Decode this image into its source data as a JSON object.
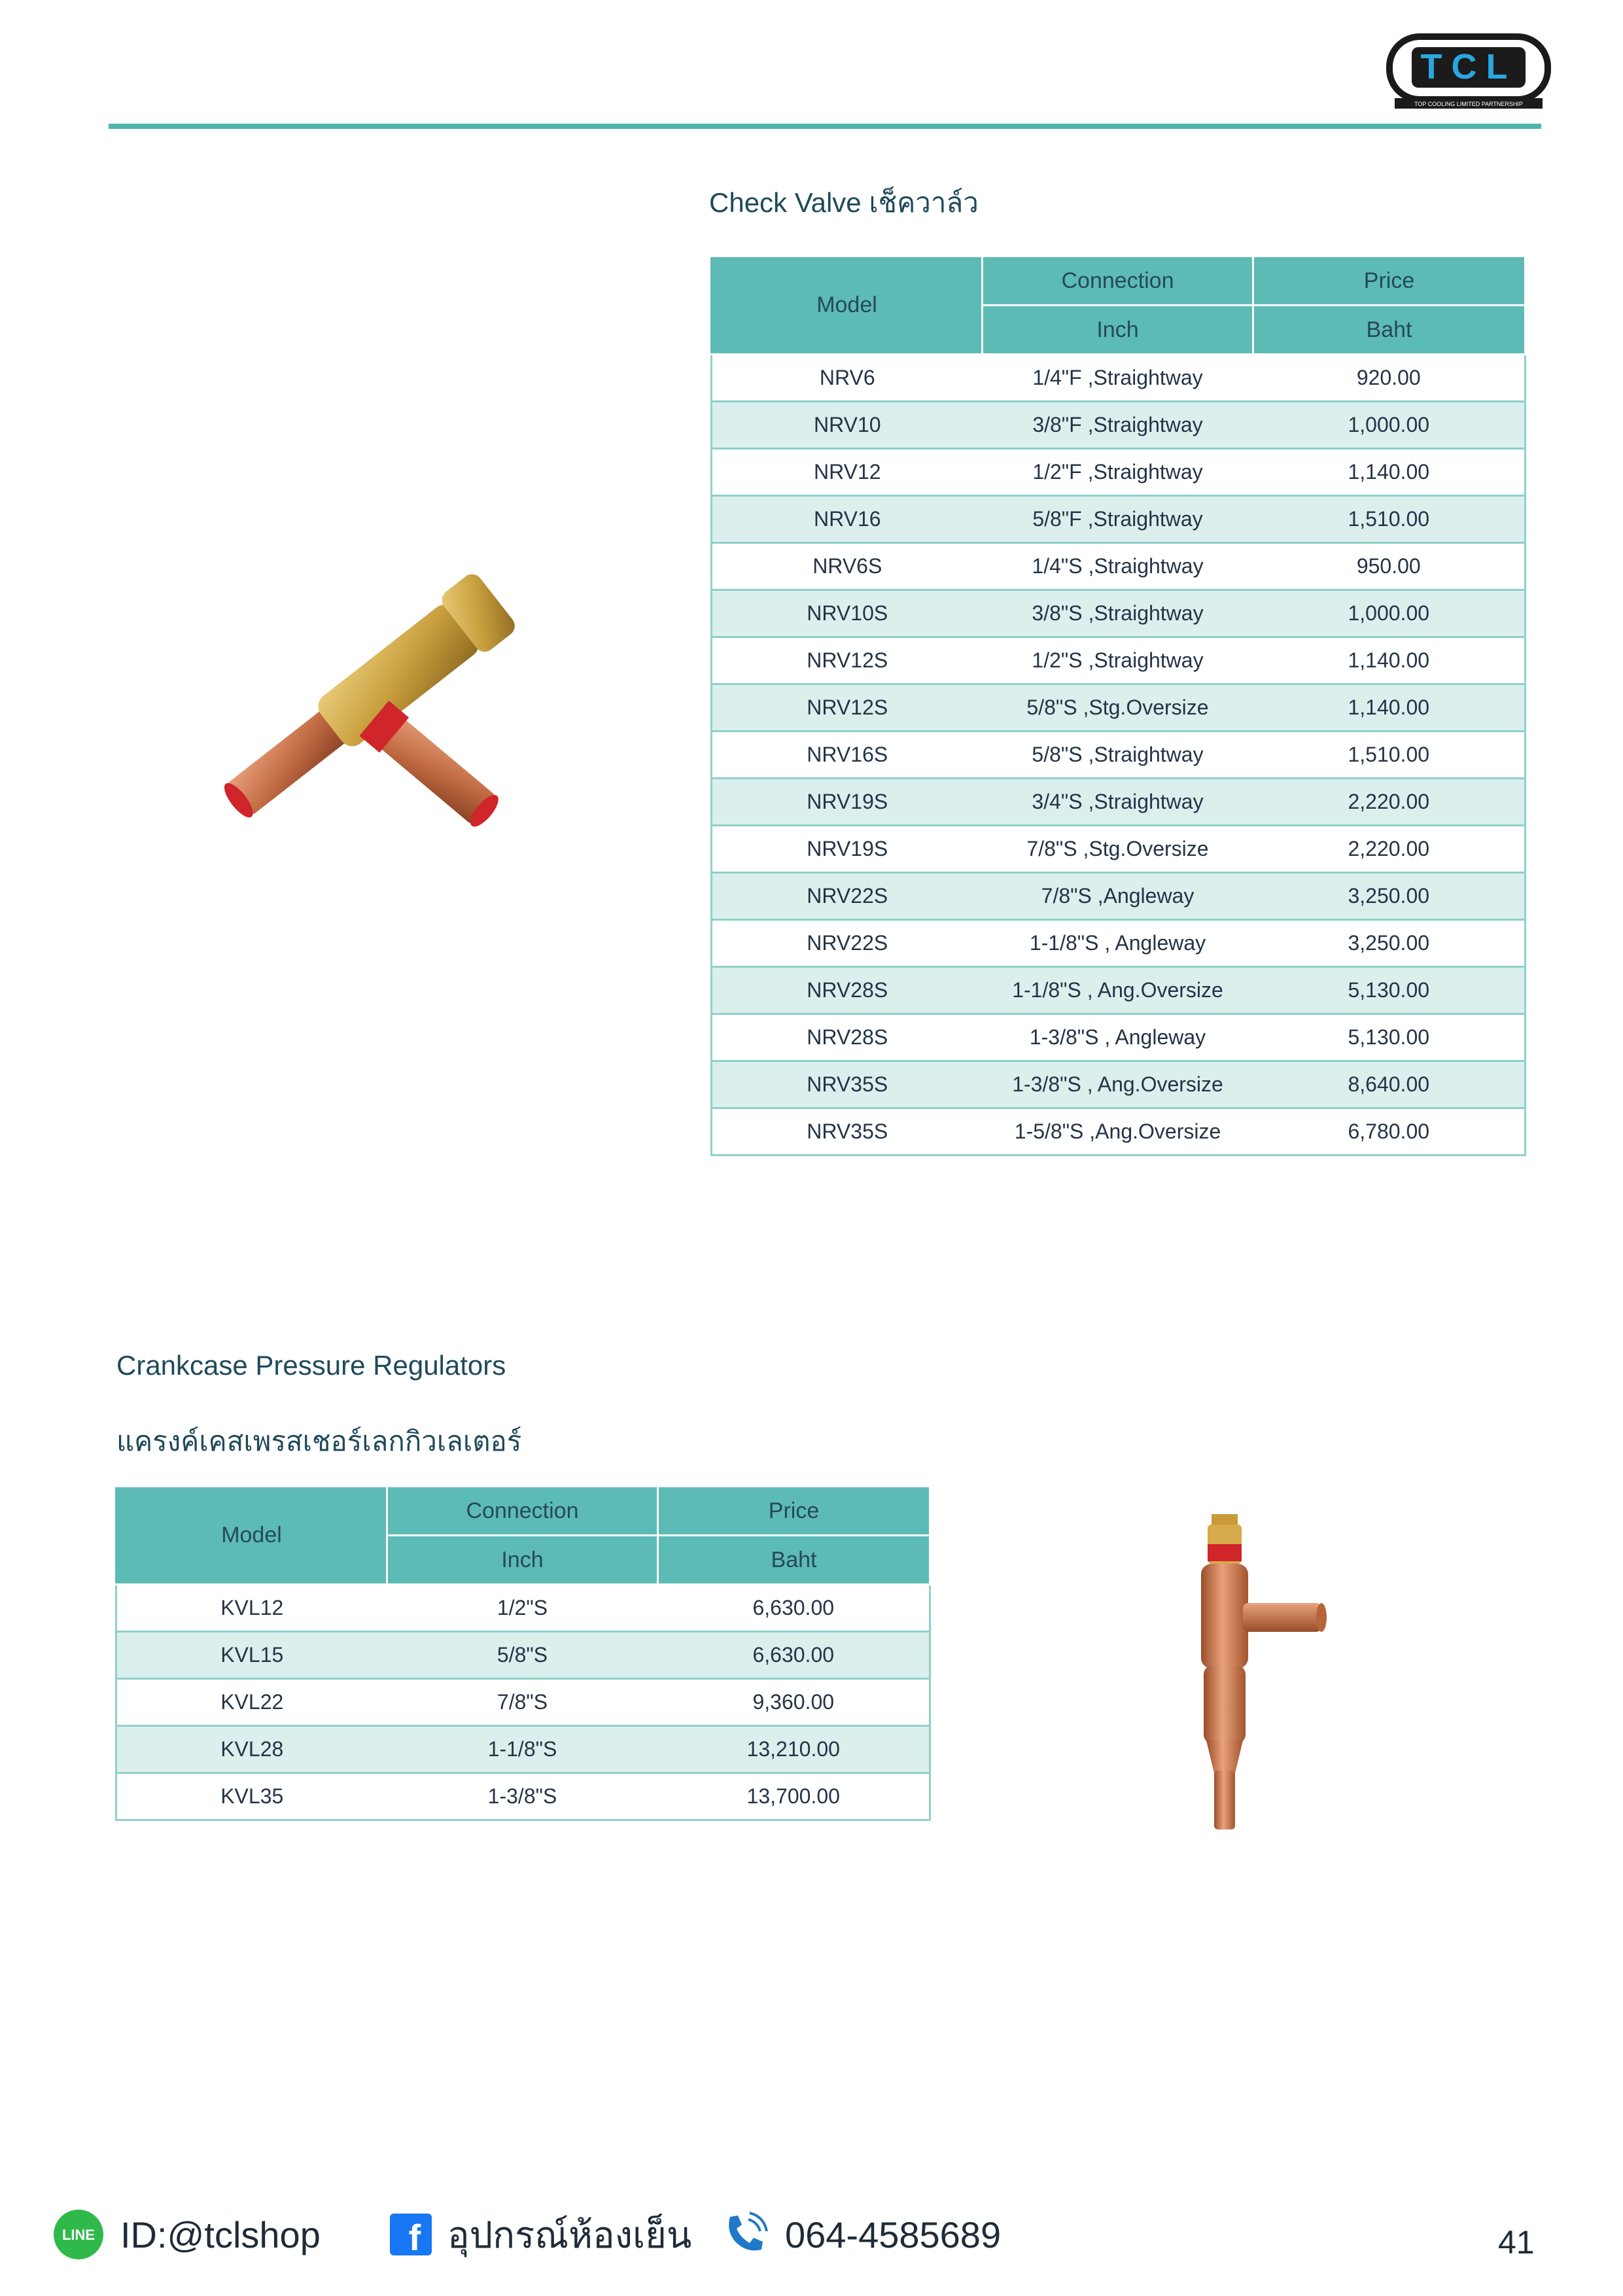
{
  "header": {
    "logo_text": "TCL",
    "logo_tagline": "TOP COOLING LIMITED PARTNERSHIP"
  },
  "check_valve": {
    "title": "Check Valve   เช็ควาล์ว",
    "headers": {
      "model": "Model",
      "connection": "Connection",
      "price": "Price",
      "connection_unit": "Inch",
      "price_unit": "Baht"
    },
    "rows": [
      {
        "model": "NRV6",
        "connection": "1/4\"F ,Straightway",
        "price": "920.00"
      },
      {
        "model": "NRV10",
        "connection": "3/8\"F ,Straightway",
        "price": "1,000.00"
      },
      {
        "model": "NRV12",
        "connection": "1/2\"F ,Straightway",
        "price": "1,140.00"
      },
      {
        "model": "NRV16",
        "connection": "5/8\"F ,Straightway",
        "price": "1,510.00"
      },
      {
        "model": "NRV6S",
        "connection": "1/4\"S ,Straightway",
        "price": "950.00"
      },
      {
        "model": "NRV10S",
        "connection": "3/8\"S ,Straightway",
        "price": "1,000.00"
      },
      {
        "model": "NRV12S",
        "connection": "1/2\"S ,Straightway",
        "price": "1,140.00"
      },
      {
        "model": "NRV12S",
        "connection": "5/8\"S ,Stg.Oversize",
        "price": "1,140.00"
      },
      {
        "model": "NRV16S",
        "connection": "5/8\"S ,Straightway",
        "price": "1,510.00"
      },
      {
        "model": "NRV19S",
        "connection": "3/4\"S ,Straightway",
        "price": "2,220.00"
      },
      {
        "model": "NRV19S",
        "connection": "7/8\"S ,Stg.Oversize",
        "price": "2,220.00"
      },
      {
        "model": "NRV22S",
        "connection": "7/8\"S ,Angleway",
        "price": "3,250.00"
      },
      {
        "model": "NRV22S",
        "connection": "1-1/8\"S , Angleway",
        "price": "3,250.00"
      },
      {
        "model": "NRV28S",
        "connection": "1-1/8\"S , Ang.Oversize",
        "price": "5,130.00"
      },
      {
        "model": "NRV28S",
        "connection": "1-3/8\"S , Angleway",
        "price": "5,130.00"
      },
      {
        "model": "NRV35S",
        "connection": "1-3/8\"S , Ang.Oversize",
        "price": "8,640.00"
      },
      {
        "model": "NRV35S",
        "connection": "1-5/8\"S ,Ang.Oversize",
        "price": "6,780.00"
      }
    ]
  },
  "crankcase": {
    "title": "Crankcase Pressure Regulators",
    "subtitle": "แครงค์เคสเพรสเชอร์เลกกิวเลเตอร์",
    "headers": {
      "model": "Model",
      "connection": "Connection",
      "price": "Price",
      "connection_unit": "Inch",
      "price_unit": "Baht"
    },
    "rows": [
      {
        "model": "KVL12",
        "connection": "1/2\"S",
        "price": "6,630.00"
      },
      {
        "model": "KVL15",
        "connection": "5/8\"S",
        "price": "6,630.00"
      },
      {
        "model": "KVL22",
        "connection": "7/8\"S",
        "price": "9,360.00"
      },
      {
        "model": "KVL28",
        "connection": "1-1/8\"S",
        "price": "13,210.00"
      },
      {
        "model": "KVL35",
        "connection": "1-3/8\"S",
        "price": "13,700.00"
      }
    ]
  },
  "footer": {
    "line_id": "ID:@tclshop",
    "facebook": "อุปกรณ์ห้องเย็น",
    "phone": "064-4585689",
    "page_number": "41"
  },
  "colors": {
    "teal": "#5cbbb5",
    "teal_light": "#dbf0ed",
    "rule": "#4fb5ab"
  }
}
